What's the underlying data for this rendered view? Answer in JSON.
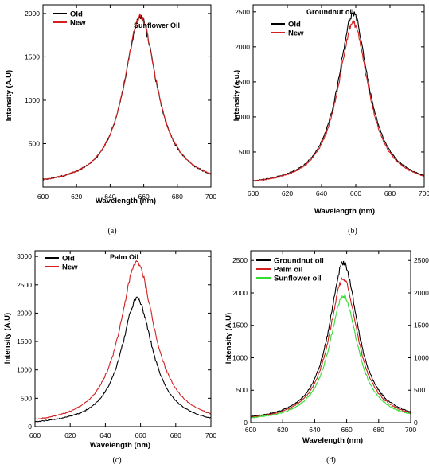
{
  "colors": {
    "black": "#000000",
    "red": "#d42020",
    "green": "#33dd33"
  },
  "chart_data": [
    {
      "panel": "(a)",
      "type": "line",
      "title": "Sunflower Oil",
      "xlabel": "Wavelength (nm)",
      "ylabel": "Intensity (A.U)",
      "xlim": [
        600,
        700
      ],
      "ylim": [
        0,
        2100
      ],
      "xticks": [
        600,
        620,
        640,
        660,
        680,
        700
      ],
      "yticks": [
        500,
        1000,
        1500,
        2000
      ],
      "legend": "top-left",
      "series": [
        {
          "name": "Old",
          "color": "#000000",
          "peak_x": 658,
          "peak_y": 1960,
          "width": 12,
          "baseline": 5
        },
        {
          "name": "New",
          "color": "#d42020",
          "peak_x": 658,
          "peak_y": 1970,
          "width": 12,
          "baseline": 5
        }
      ]
    },
    {
      "panel": "(b)",
      "type": "line",
      "title": "Groundnut oil",
      "xlabel": "Wavelength (nm)",
      "ylabel": "Intensity (a.u.)",
      "xlim": [
        600,
        700
      ],
      "ylim": [
        0,
        2600
      ],
      "xticks": [
        600,
        620,
        640,
        660,
        680,
        700
      ],
      "yticks": [
        500,
        1000,
        1500,
        2000,
        2500
      ],
      "legend": "top-left",
      "series": [
        {
          "name": "Old",
          "color": "#000000",
          "peak_x": 658.5,
          "peak_y": 2470,
          "width": 11,
          "baseline": 5
        },
        {
          "name": "New",
          "color": "#d42020",
          "peak_x": 658.5,
          "peak_y": 2340,
          "width": 11,
          "baseline": 5
        }
      ]
    },
    {
      "panel": "(c)",
      "type": "line",
      "title": "Palm Oil",
      "xlabel": "Wavelength (nm)",
      "ylabel": "Intensity (A.U)",
      "xlim": [
        600,
        700
      ],
      "ylim": [
        0,
        3100
      ],
      "xticks": [
        600,
        620,
        640,
        660,
        680,
        700
      ],
      "yticks": [
        0,
        500,
        1000,
        1500,
        2000,
        2500,
        3000
      ],
      "legend": "top-left",
      "series": [
        {
          "name": "Old",
          "color": "#000000",
          "peak_x": 658,
          "peak_y": 2250,
          "width": 11,
          "baseline": 10
        },
        {
          "name": "New",
          "color": "#d42020",
          "peak_x": 658,
          "peak_y": 2900,
          "width": 12,
          "baseline": 10
        }
      ]
    },
    {
      "panel": "(d)",
      "type": "line",
      "title": "",
      "xlabel": "Wavelength (nm)",
      "ylabel": "Intensity (A.U)",
      "xlim": [
        600,
        700
      ],
      "ylim": [
        0,
        2650
      ],
      "xticks": [
        600,
        620,
        640,
        660,
        680,
        700
      ],
      "yticks": [
        0,
        500,
        1000,
        1500,
        2000,
        2500
      ],
      "right_yticks": [
        0,
        500,
        1000,
        1500,
        2000,
        2500
      ],
      "legend": "top-left",
      "series": [
        {
          "name": "Groundnut oil",
          "color": "#000000",
          "peak_x": 658,
          "peak_y": 2470,
          "width": 11,
          "baseline": 8
        },
        {
          "name": "Palm oil",
          "color": "#d42020",
          "peak_x": 658,
          "peak_y": 2230,
          "width": 11,
          "baseline": 8
        },
        {
          "name": "Sunflower oil",
          "color": "#33dd33",
          "peak_x": 658,
          "peak_y": 1960,
          "width": 11,
          "baseline": 8
        }
      ]
    }
  ]
}
